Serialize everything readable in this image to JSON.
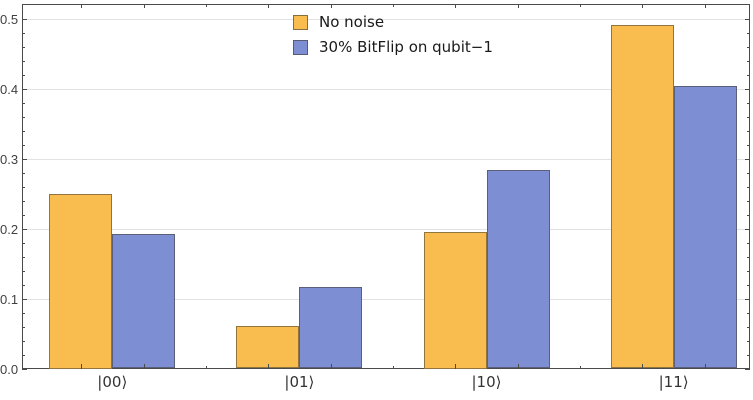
{
  "chart_data": {
    "type": "bar",
    "categories": [
      "|00⟩",
      "|01⟩",
      "|10⟩",
      "|11⟩"
    ],
    "series": [
      {
        "name": "No noise",
        "color": "#f8bc4f",
        "values": [
          0.25,
          0.061,
          0.195,
          0.491
        ]
      },
      {
        "name": "30% BitFlip on qubit−1",
        "color": "#7d8ed3",
        "values": [
          0.192,
          0.117,
          0.284,
          0.403
        ]
      }
    ],
    "title": "",
    "xlabel": "",
    "ylabel": "",
    "ylim": [
      0,
      0.52
    ],
    "yticks": [
      0,
      0.1,
      0.2,
      0.3,
      0.4,
      0.5
    ],
    "ytick_labels": [
      "0.0",
      "0.1",
      "0.2",
      "0.3",
      "0.4",
      "0.5"
    ],
    "minor_ytick_step": 0.02,
    "grid": true,
    "frame": true,
    "legend_position": "top-center-inside"
  }
}
